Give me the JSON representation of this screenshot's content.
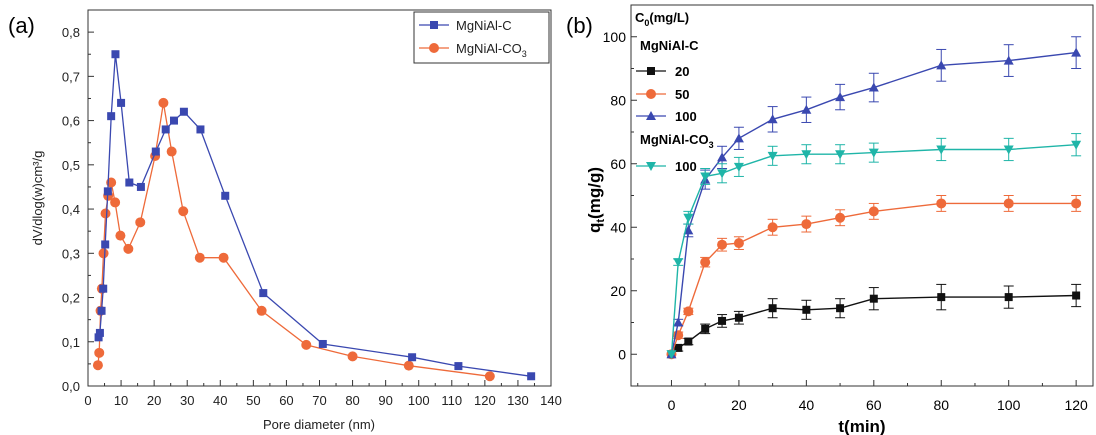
{
  "panel_labels": {
    "a": "(a)",
    "b": "(b)"
  },
  "chart_data": [
    {
      "type": "line",
      "panel": "(a)",
      "xlabel": "Pore diameter (nm)",
      "ylabel": "dV/dlog(w)cm³/g",
      "xlim": [
        0,
        140
      ],
      "ylim": [
        0,
        0.85
      ],
      "x_ticks": [
        "0",
        "10",
        "20",
        "30",
        "40",
        "50",
        "60",
        "70",
        "80",
        "90",
        "100",
        "110",
        "120",
        "130",
        "140"
      ],
      "y_ticks": [
        "0,0",
        "0,1",
        "0,2",
        "0,3",
        "0,4",
        "0,5",
        "0,6",
        "0,7",
        "0,8"
      ],
      "grid": false,
      "legend_position": "top-right",
      "colors": {
        "MgNiAl-C": "#3a48b0",
        "MgNiAl-CO3": "#ee6a3a"
      },
      "series": [
        {
          "name": "MgNiAl-C",
          "marker": "square",
          "x": [
            3.2,
            3.6,
            4.1,
            4.6,
            5.2,
            6.0,
            7.0,
            8.3,
            10.0,
            12.5,
            16.0,
            20.5,
            23.5,
            26.0,
            29.0,
            34.0,
            41.5,
            53.0,
            71.0,
            98.0,
            112.0,
            134.0
          ],
          "y": [
            0.11,
            0.12,
            0.17,
            0.22,
            0.32,
            0.44,
            0.61,
            0.75,
            0.64,
            0.46,
            0.45,
            0.53,
            0.58,
            0.6,
            0.62,
            0.58,
            0.43,
            0.21,
            0.095,
            0.065,
            0.045,
            0.022
          ]
        },
        {
          "name": "MgNiAl-CO3",
          "marker": "circle",
          "x": [
            3.0,
            3.4,
            3.8,
            4.2,
            4.7,
            5.3,
            6.1,
            7.0,
            8.2,
            9.8,
            12.2,
            15.8,
            20.3,
            22.8,
            25.3,
            28.8,
            33.8,
            41.0,
            52.5,
            66.0,
            80.0,
            97.0,
            121.5
          ],
          "y": [
            0.047,
            0.075,
            0.17,
            0.22,
            0.3,
            0.39,
            0.43,
            0.46,
            0.415,
            0.34,
            0.31,
            0.37,
            0.52,
            0.64,
            0.53,
            0.395,
            0.29,
            0.29,
            0.17,
            0.093,
            0.067,
            0.046,
            0.022
          ]
        }
      ]
    },
    {
      "type": "line",
      "panel": "(b)",
      "xlabel": "t(min)",
      "ylabel": "qt(mg/g)",
      "xlim": [
        -12,
        125
      ],
      "ylim": [
        -10,
        110
      ],
      "x_ticks": [
        "0",
        "20",
        "40",
        "60",
        "80",
        "100",
        "120"
      ],
      "y_ticks": [
        "0",
        "20",
        "40",
        "60",
        "80",
        "100"
      ],
      "grid": false,
      "legend_position": "top-left",
      "legend_title": "C0(mg/L)",
      "legend_groups": [
        "MgNiAl-C",
        "MgNiAl-CO3"
      ],
      "colors": {
        "20": "#111111",
        "50": "#ee6a3a",
        "100": "#3a48b0",
        "100 CO3": "#1fb5a8"
      },
      "series": [
        {
          "name": "20",
          "group": "MgNiAl-C",
          "marker": "square",
          "x": [
            0,
            2,
            5,
            10,
            15,
            20,
            30,
            40,
            50,
            60,
            80,
            100,
            120
          ],
          "y": [
            0,
            2,
            4,
            8,
            10.5,
            11.5,
            14.5,
            14,
            14.5,
            17.5,
            18,
            18,
            18.5
          ],
          "err": [
            0,
            1,
            1,
            1.5,
            2,
            2,
            3,
            3,
            3,
            3.5,
            4,
            3.5,
            3.5
          ]
        },
        {
          "name": "50",
          "group": "MgNiAl-C",
          "marker": "circle",
          "x": [
            0,
            2,
            5,
            10,
            15,
            20,
            30,
            40,
            50,
            60,
            80,
            100,
            120
          ],
          "y": [
            0,
            6,
            13.5,
            29,
            34.5,
            35,
            40,
            41,
            43,
            45,
            47.5,
            47.5,
            47.5
          ],
          "err": [
            0,
            1,
            1,
            1.5,
            2,
            2,
            2.5,
            2.5,
            2.5,
            2.5,
            2.5,
            2.5,
            2.5
          ]
        },
        {
          "name": "100",
          "group": "MgNiAl-C",
          "marker": "triangle-up",
          "x": [
            0,
            2,
            5,
            10,
            15,
            20,
            30,
            40,
            50,
            60,
            80,
            100,
            120
          ],
          "y": [
            0,
            10,
            39,
            55,
            62,
            68,
            74,
            77,
            81,
            84,
            91,
            92.5,
            95
          ],
          "err": [
            0,
            1,
            2,
            3,
            3.5,
            3.5,
            4,
            4,
            4,
            4.5,
            5,
            5,
            5
          ]
        },
        {
          "name": "100",
          "group": "MgNiAl-CO3",
          "marker": "triangle-down",
          "x": [
            0,
            2,
            5,
            10,
            15,
            20,
            30,
            40,
            50,
            60,
            80,
            100,
            120
          ],
          "y": [
            0,
            29,
            43,
            56,
            57,
            59,
            62.5,
            63,
            63,
            63.5,
            64.5,
            64.5,
            66
          ],
          "err": [
            0,
            1,
            2,
            2.5,
            3,
            3,
            3,
            3,
            3,
            3,
            3.5,
            3.5,
            3.5
          ]
        }
      ]
    }
  ]
}
